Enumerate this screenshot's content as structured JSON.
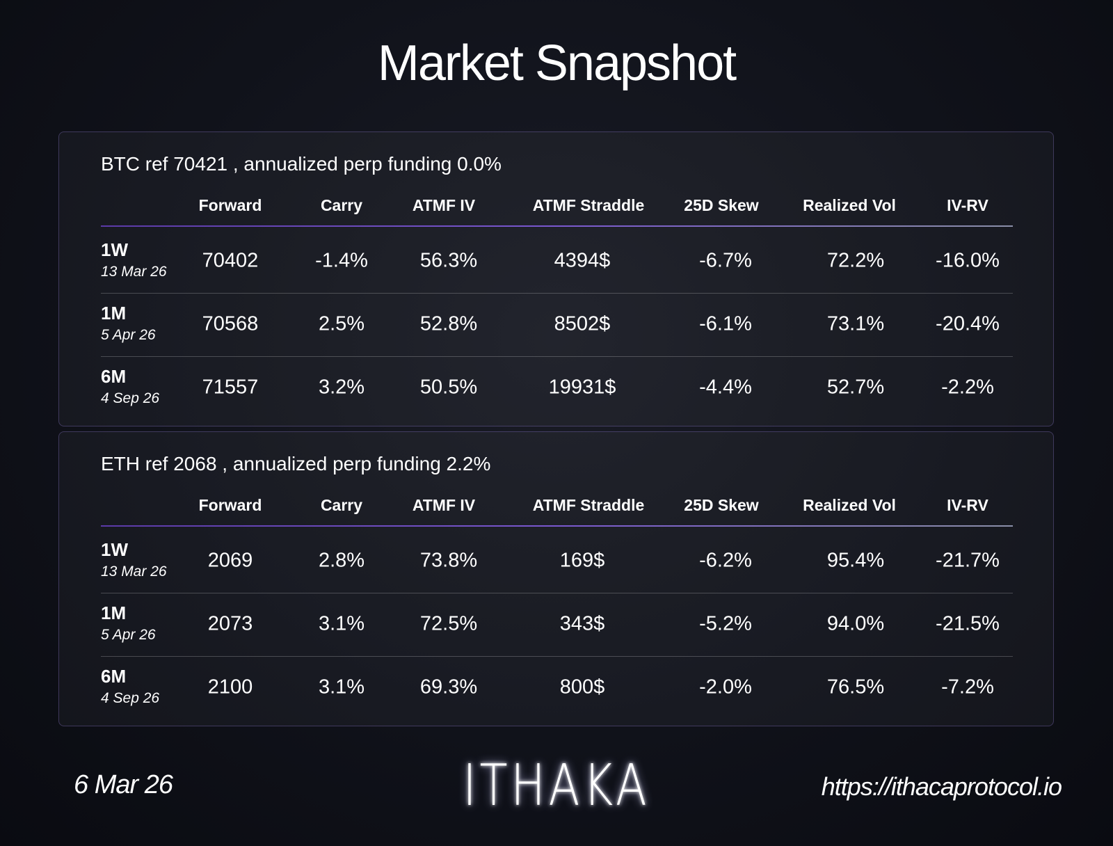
{
  "title": "Market Snapshot",
  "tables": [
    {
      "heading": "BTC ref 70421 , annualized perp funding 0.0%",
      "columns": [
        "Forward",
        "Carry",
        "ATMF IV",
        "ATMF Straddle",
        "25D Skew",
        "Realized Vol",
        "IV-RV"
      ],
      "rows": [
        {
          "tenor": "1W",
          "date": "13 Mar 26",
          "cells": [
            "70402",
            "-1.4%",
            "56.3%",
            "4394$",
            "-6.7%",
            "72.2%",
            "-16.0%"
          ]
        },
        {
          "tenor": "1M",
          "date": "5 Apr 26",
          "cells": [
            "70568",
            "2.5%",
            "52.8%",
            "8502$",
            "-6.1%",
            "73.1%",
            "-20.4%"
          ]
        },
        {
          "tenor": "6M",
          "date": "4 Sep 26",
          "cells": [
            "71557",
            "3.2%",
            "50.5%",
            "19931$",
            "-4.4%",
            "52.7%",
            "-2.2%"
          ]
        }
      ]
    },
    {
      "heading": "ETH ref 2068 , annualized perp funding 2.2%",
      "columns": [
        "Forward",
        "Carry",
        "ATMF IV",
        "ATMF Straddle",
        "25D Skew",
        "Realized Vol",
        "IV-RV"
      ],
      "rows": [
        {
          "tenor": "1W",
          "date": "13 Mar 26",
          "cells": [
            "2069",
            "2.8%",
            "73.8%",
            "169$",
            "-6.2%",
            "95.4%",
            "-21.7%"
          ]
        },
        {
          "tenor": "1M",
          "date": "5 Apr 26",
          "cells": [
            "2073",
            "3.1%",
            "72.5%",
            "343$",
            "-5.2%",
            "94.0%",
            "-21.5%"
          ]
        },
        {
          "tenor": "6M",
          "date": "4 Sep 26",
          "cells": [
            "2100",
            "3.1%",
            "69.3%",
            "800$",
            "-2.0%",
            "76.5%",
            "-7.2%"
          ]
        }
      ]
    }
  ],
  "footer": {
    "date": "6 Mar 26",
    "logo": "ITHAKA",
    "url": "https://ithacaprotocol.io"
  }
}
